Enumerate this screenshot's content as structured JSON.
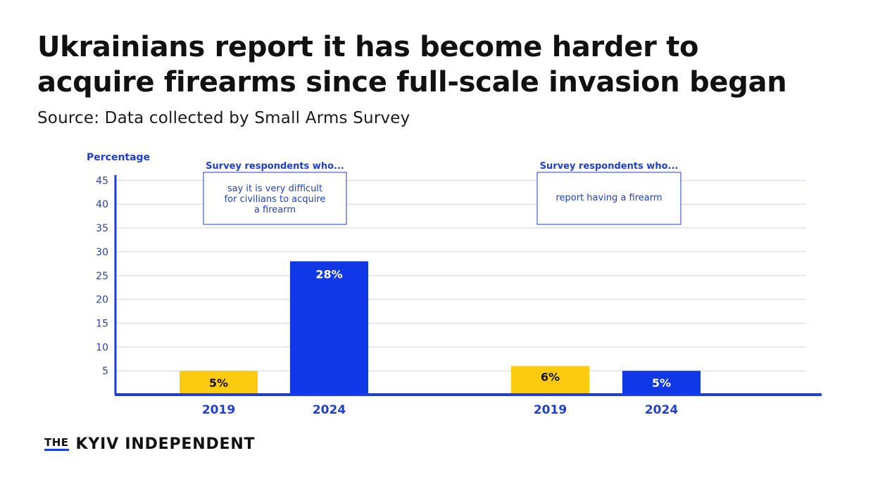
{
  "title_lines": [
    "Ukrainians report it has become harder to",
    "acquire firearms since full-scale invasion began"
  ],
  "source": "Source: Data collected by Small Arms Survey",
  "logo": {
    "the": "THE",
    "name": "KYIV INDEPENDENT"
  },
  "colors": {
    "yellow": "#fccb10",
    "blue": "#1138e6",
    "axis": "#1a3be8",
    "grid": "#d0d4dc",
    "label_blue": "#1e3fd0",
    "tick": "#2c3fb0"
  },
  "chart_data": {
    "type": "bar",
    "ylabel": "Percentage",
    "ylim": [
      0,
      47
    ],
    "yticks": [
      5,
      10,
      15,
      20,
      25,
      30,
      35,
      40,
      45
    ],
    "grid": true,
    "groups": [
      {
        "header": "Survey respondents who...",
        "description": [
          "say it is very difficult",
          "for civilians to acquire",
          "a firearm"
        ],
        "bars": [
          {
            "category": "2019",
            "value": 5,
            "label": "5%",
            "color": "yellow"
          },
          {
            "category": "2024",
            "value": 28,
            "label": "28%",
            "color": "blue"
          }
        ]
      },
      {
        "header": "Survey respondents who...",
        "description": [
          "report having a firearm"
        ],
        "bars": [
          {
            "category": "2019",
            "value": 6,
            "label": "6%",
            "color": "yellow"
          },
          {
            "category": "2024",
            "value": 5,
            "label": "5%",
            "color": "blue"
          }
        ]
      }
    ]
  }
}
